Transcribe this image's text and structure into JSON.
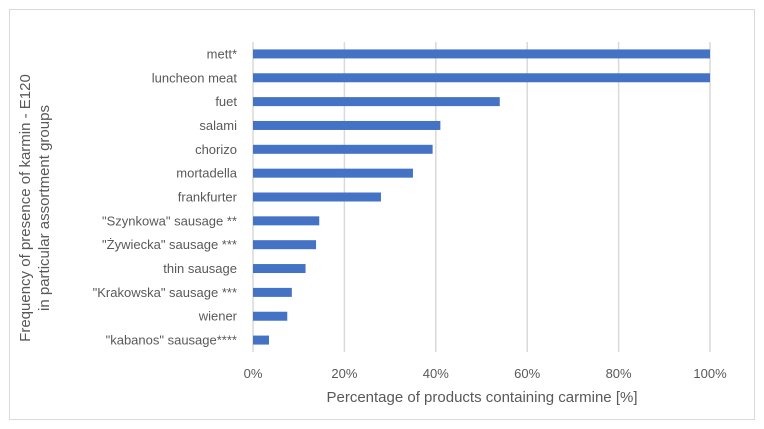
{
  "chart_data": {
    "type": "bar",
    "orientation": "horizontal",
    "categories": [
      "mett*",
      "luncheon meat",
      "fuet",
      "salami",
      "chorizo",
      "mortadella",
      "frankfurter",
      "\"Szynkowa\" sausage **",
      "\"Żywiecka\" sausage ***",
      "thin sausage",
      "\"Krakowska\" sausage ***",
      "wiener",
      "\"kabanos\" sausage****"
    ],
    "values": [
      100,
      100,
      54,
      41,
      39.3,
      35,
      28,
      14.5,
      13.8,
      11.5,
      8.5,
      7.5,
      3.5
    ],
    "xlabel": "Percentage of products containing carmine [%]",
    "ylabel_line1": "Frequency of presence of karmin - E120",
    "ylabel_line2": "in particular assortment groups",
    "xlim": [
      0,
      100
    ],
    "x_ticks": [
      0,
      20,
      40,
      60,
      80,
      100
    ],
    "x_tick_labels": [
      "0%",
      "20%",
      "40%",
      "60%",
      "80%",
      "100%"
    ],
    "bar_color": "#4472c4",
    "grid_color": "#d9d9d9",
    "grid": true,
    "legend": "none"
  }
}
